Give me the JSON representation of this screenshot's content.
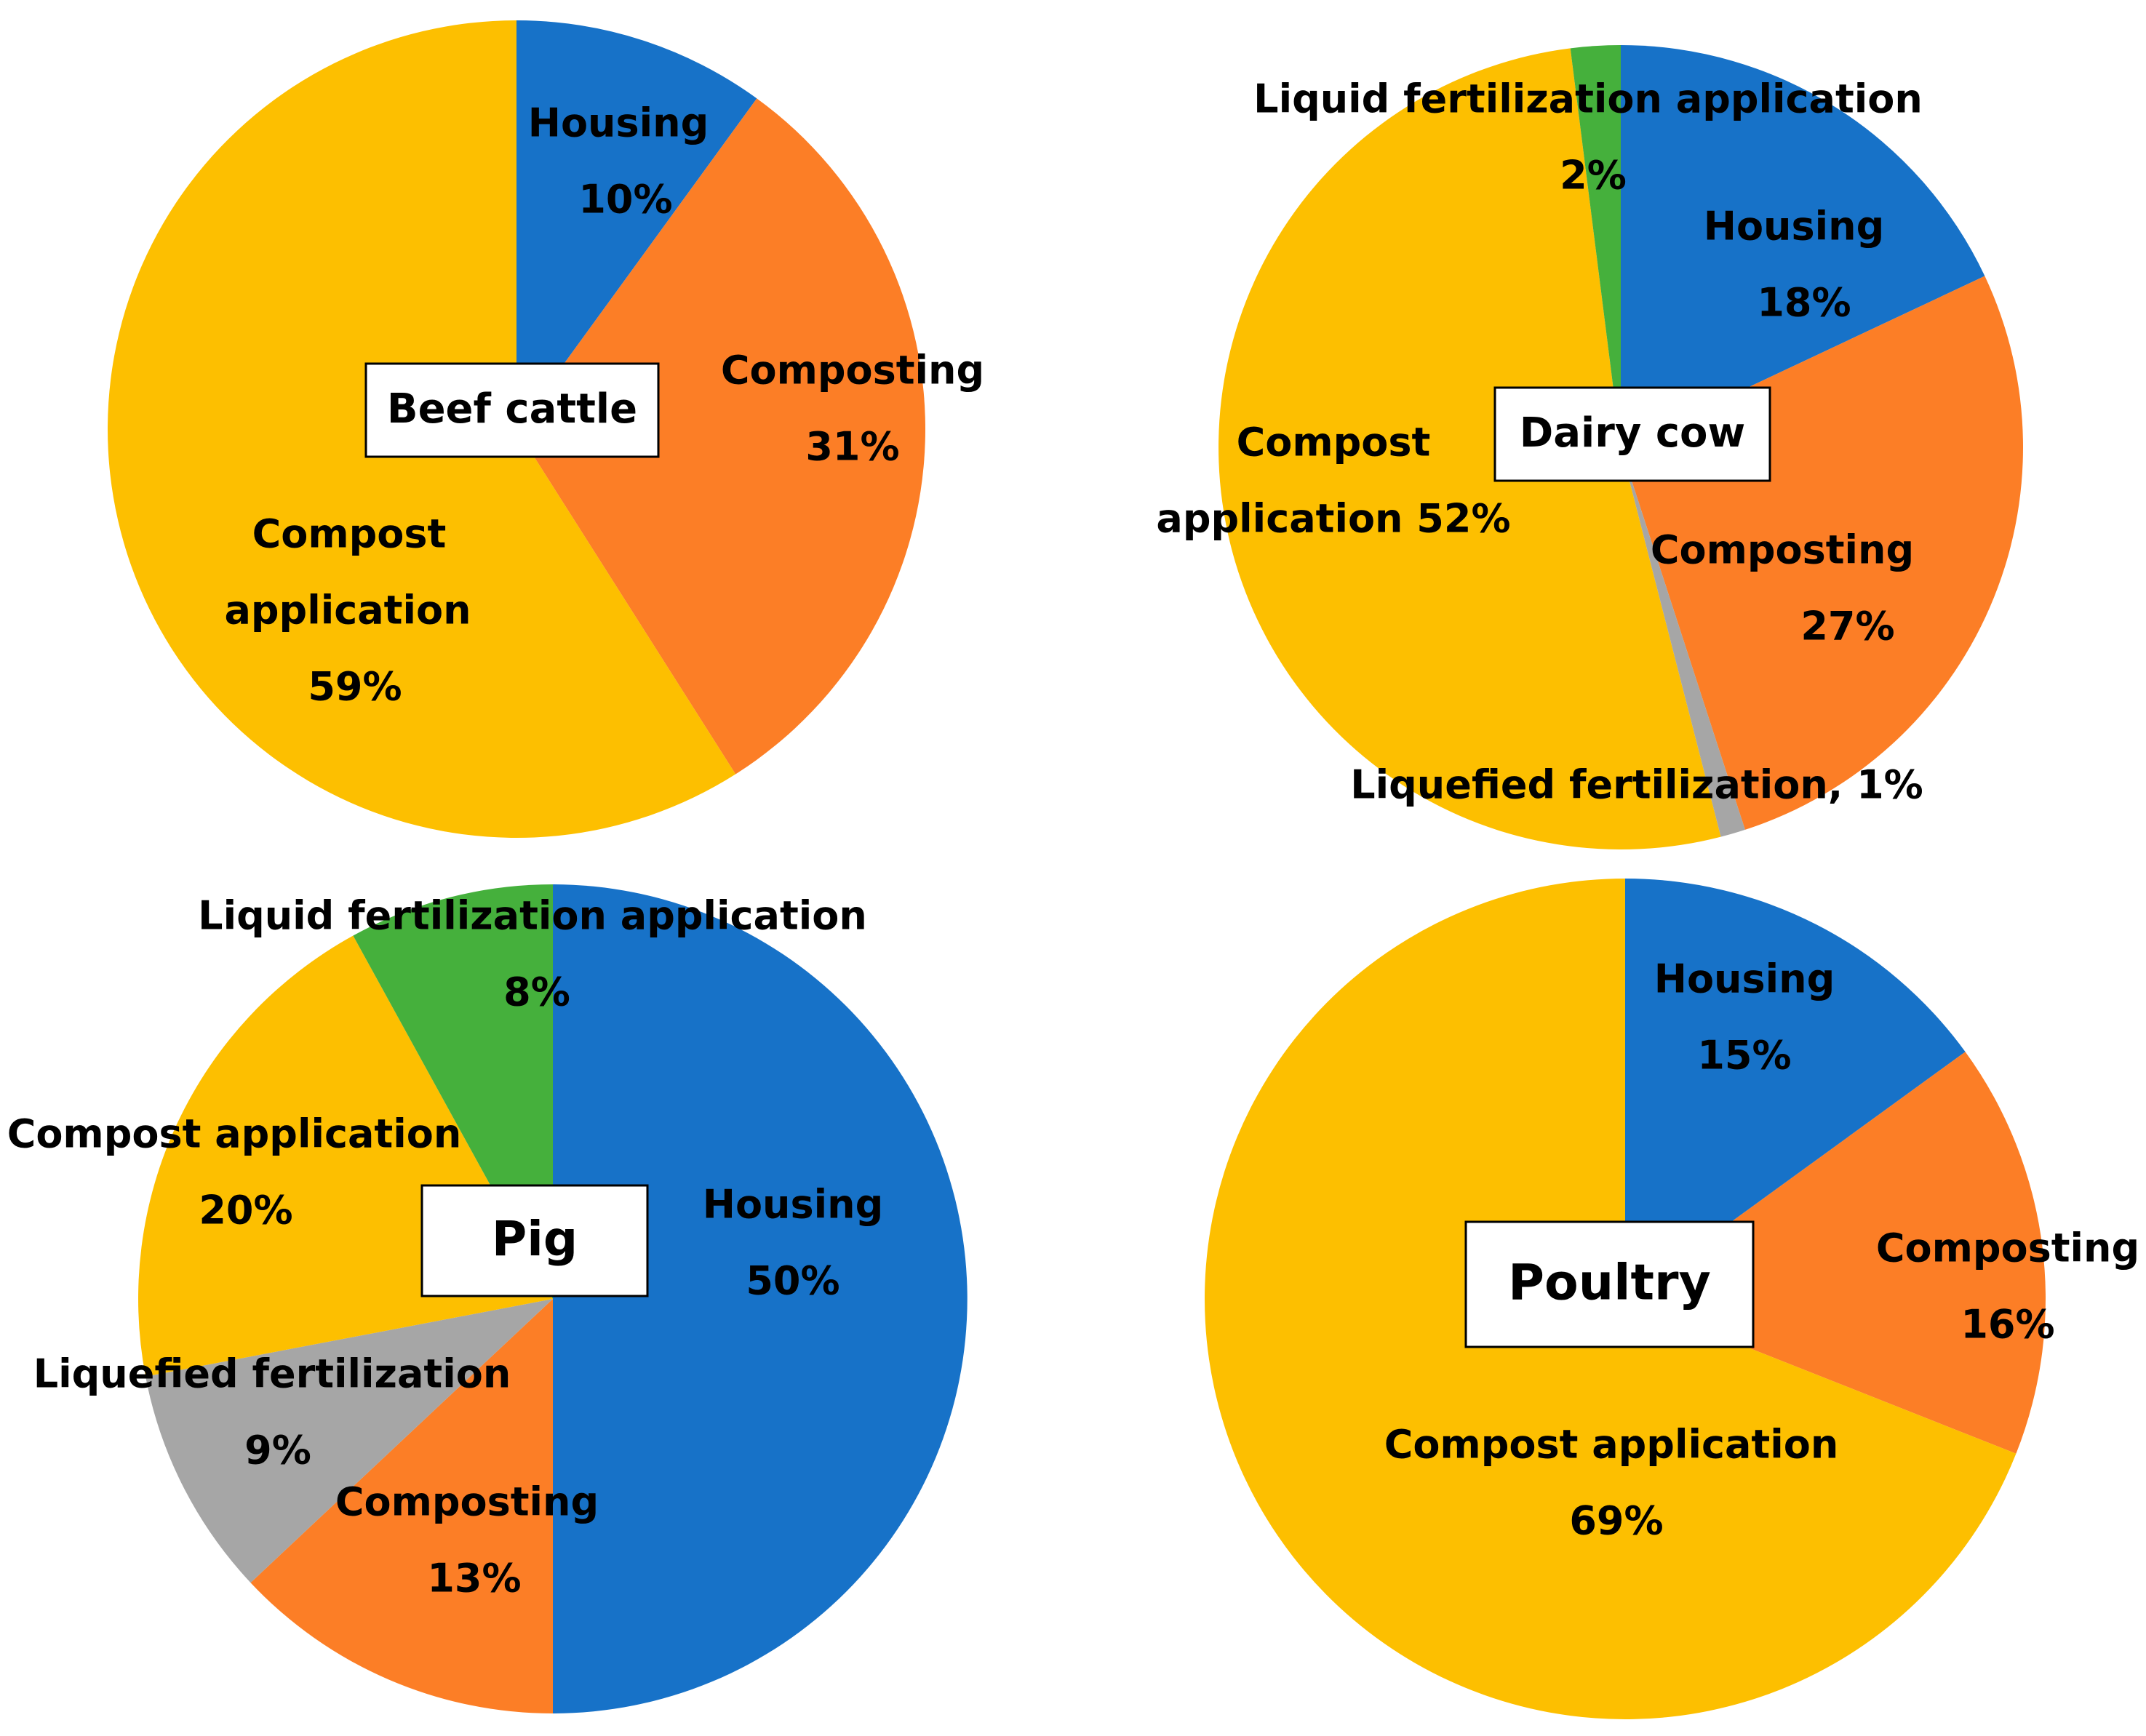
{
  "chart_data": [
    {
      "type": "pie",
      "title": "Beef cattle",
      "colors": [
        "#1772c8",
        "#fc7e26",
        "#fdbf00"
      ],
      "slices": [
        {
          "label": "Housing",
          "value": 10,
          "text": [
            "Housing",
            "10%"
          ]
        },
        {
          "label": "Composting",
          "value": 31,
          "text": [
            "Composting",
            "31%"
          ]
        },
        {
          "label": "Compost application",
          "value": 59,
          "text": [
            "Compost",
            "application",
            "59%"
          ]
        }
      ]
    },
    {
      "type": "pie",
      "title": "Dairy cow",
      "colors": [
        "#1772c8",
        "#fc7e26",
        "#a6a6a6",
        "#fdbf00",
        "#45b03c"
      ],
      "slices": [
        {
          "label": "Housing",
          "value": 18,
          "text": [
            "Housing",
            "18%"
          ]
        },
        {
          "label": "Composting",
          "value": 27,
          "text": [
            "Composting",
            "27%"
          ]
        },
        {
          "label": "Liquefied fertilization",
          "value": 1,
          "text": [
            "Liquefied fertilization, 1%"
          ]
        },
        {
          "label": "Compost application",
          "value": 52,
          "text": [
            "Compost",
            "application 52%"
          ]
        },
        {
          "label": "Liquid fertilization application",
          "value": 2,
          "text": [
            "Liquid fertilization application",
            "2%"
          ]
        }
      ]
    },
    {
      "type": "pie",
      "title": "Pig",
      "colors": [
        "#1772c8",
        "#fc7e26",
        "#a6a6a6",
        "#fdbf00",
        "#45b03c"
      ],
      "slices": [
        {
          "label": "Housing",
          "value": 50,
          "text": [
            "Housing",
            "50%"
          ]
        },
        {
          "label": "Composting",
          "value": 13,
          "text": [
            "Composting",
            "13%"
          ]
        },
        {
          "label": "Liquefied fertilization",
          "value": 9,
          "text": [
            "Liquefied fertilization",
            "9%"
          ]
        },
        {
          "label": "Compost application",
          "value": 20,
          "text": [
            "Compost application",
            "20%"
          ]
        },
        {
          "label": "Liquid fertilization application",
          "value": 8,
          "text": [
            "Liquid fertilization application",
            "8%"
          ]
        }
      ]
    },
    {
      "type": "pie",
      "title": "Poultry",
      "colors": [
        "#1772c8",
        "#fc7e26",
        "#fdbf00"
      ],
      "slices": [
        {
          "label": "Housing",
          "value": 15,
          "text": [
            "Housing",
            "15%"
          ]
        },
        {
          "label": "Composting",
          "value": 16,
          "text": [
            "Composting",
            "16%"
          ]
        },
        {
          "label": "Compost application",
          "value": 69,
          "text": [
            "Compost application",
            "69%"
          ]
        }
      ]
    }
  ]
}
